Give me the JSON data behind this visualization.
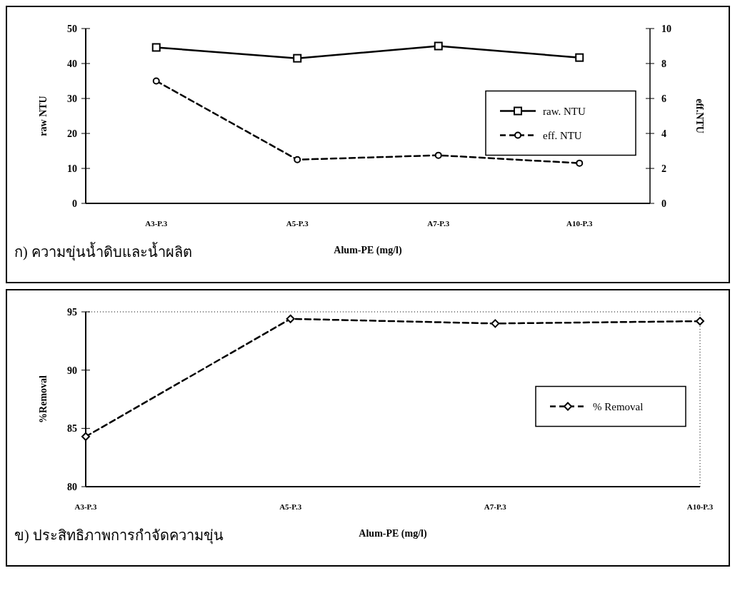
{
  "chart_data": [
    {
      "type": "line",
      "title": "ก) ความขุ่นน้ำดิบและน้ำผลิต",
      "xlabel": "Alum-PE (mg/l)",
      "ylabel": "raw NTU",
      "y2label": "eff.NTU",
      "categories": [
        "A3-P.3",
        "A5-P.3",
        "A7-P.3",
        "A10-P.3"
      ],
      "ylim": [
        0,
        50
      ],
      "yticks": [
        0,
        10,
        20,
        30,
        40,
        50
      ],
      "y2lim": [
        0,
        10
      ],
      "y2ticks": [
        0,
        2,
        4,
        6,
        8,
        10
      ],
      "legend": "right",
      "series": [
        {
          "name": "raw. NTU",
          "color": "#000000",
          "values": [
            44.6,
            41.5,
            45,
            41.7
          ],
          "marker": "square",
          "line_style": "solid"
        },
        {
          "name": "eff. NTU",
          "color": "#000000",
          "values": [
            7.0,
            2.5,
            2.75,
            2.3
          ],
          "marker": "circle",
          "line_style": "dashed",
          "axis": "y2"
        }
      ]
    },
    {
      "type": "line",
      "title": "ข) ประสิทธิภาพการกำจัดความขุ่น",
      "xlabel": "Alum-PE (mg/l)",
      "ylabel": "%Removal",
      "categories": [
        "A3-P.3",
        "A5-P.3",
        "A7-P.3",
        "A10-P.3"
      ],
      "ylim": [
        80,
        95
      ],
      "yticks": [
        80,
        85,
        90,
        95
      ],
      "legend": "right",
      "series": [
        {
          "name": "% Removal",
          "color": "#000000",
          "values": [
            84.3,
            94.4,
            94.0,
            94.2
          ],
          "marker": "diamond",
          "line_style": "dashed"
        }
      ]
    }
  ]
}
